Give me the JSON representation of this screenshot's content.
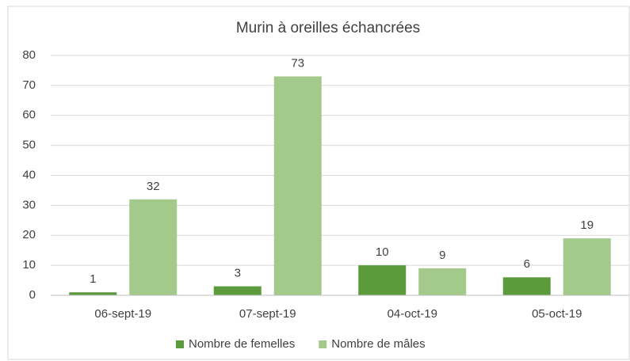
{
  "chart_data": {
    "type": "bar",
    "title": "Murin à oreilles échancrées",
    "categories": [
      "06-sept-19",
      "07-sept-19",
      "04-oct-19",
      "05-oct-19"
    ],
    "series": [
      {
        "name": "Nombre de femelles",
        "color": "#5b9b3c",
        "values": [
          1,
          3,
          10,
          6
        ]
      },
      {
        "name": "Nombre de mâles",
        "color": "#a3c98b",
        "values": [
          32,
          73,
          9,
          19
        ]
      }
    ],
    "ylim": [
      0,
      80
    ],
    "yticks": [
      0,
      10,
      20,
      30,
      40,
      50,
      60,
      70,
      80
    ],
    "grid": true,
    "legend": "bottom"
  }
}
